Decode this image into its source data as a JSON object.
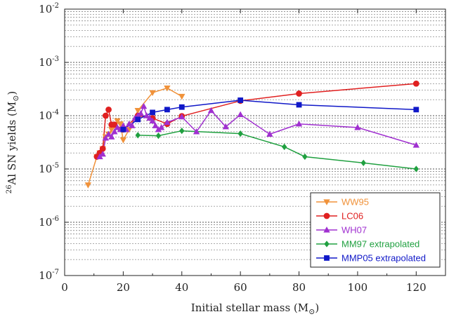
{
  "chart_data": {
    "type": "line",
    "xlabel": "Initial stellar mass (M",
    "xlabel_sub": "⊙",
    "xlabel_end": ")",
    "ylabel": "Al SN yields (M",
    "ylabel_sup": "26",
    "ylabel_sub": "⊙",
    "ylabel_end": ")",
    "xlim": [
      0,
      130
    ],
    "ylim_log10": [
      -7,
      -2
    ],
    "y_scale": "log",
    "grid": true,
    "legend_placement": "bottom-right",
    "x_ticks": [
      "0",
      "20",
      "40",
      "60",
      "80",
      "100",
      "120"
    ],
    "y_tick_base": "10",
    "y_tick_exponents": [
      "-7",
      "-6",
      "-5",
      "-4",
      "-3",
      "-2"
    ],
    "series": [
      {
        "name": "WW95",
        "color": "#f0923a",
        "marker": "triangle-down",
        "x": [
          8,
          11,
          12,
          13,
          14,
          15,
          16,
          17,
          18,
          19,
          20,
          22,
          25,
          30,
          35,
          40
        ],
        "y": [
          5e-06,
          1.7e-05,
          2e-05,
          2.4e-05,
          4e-05,
          4.5e-05,
          5.5e-05,
          6.5e-05,
          8e-05,
          7e-05,
          3.5e-05,
          5.5e-05,
          0.000125,
          0.00027,
          0.00033,
          0.00023
        ]
      },
      {
        "name": "LC06",
        "color": "#e02020",
        "marker": "circle",
        "x": [
          11,
          12,
          13,
          14,
          15,
          16,
          17,
          20,
          25,
          30,
          35,
          40,
          60,
          80,
          120
        ],
        "y": [
          1.7e-05,
          2e-05,
          2.4e-05,
          0.0001,
          0.00013,
          6.8e-05,
          6.8e-05,
          5.5e-05,
          0.0001,
          9e-05,
          7e-05,
          9.8e-05,
          0.00019,
          0.00026,
          0.0004
        ]
      },
      {
        "name": "WH07",
        "color": "#a030d0",
        "marker": "triangle-up",
        "x": [
          12,
          13,
          14,
          15,
          16,
          17,
          18,
          19,
          20,
          21,
          22,
          23,
          24,
          25,
          26,
          27,
          28,
          29,
          30,
          31,
          32,
          33,
          35,
          40,
          45,
          50,
          55,
          60,
          70,
          80,
          100,
          120
        ],
        "y": [
          1.7e-05,
          1.9e-05,
          3.8e-05,
          4.5e-05,
          4e-05,
          5e-05,
          6e-05,
          5.5e-05,
          6.5e-05,
          5.5e-05,
          7e-05,
          6.5e-05,
          9e-05,
          0.0001,
          0.00011,
          0.00015,
          0.0001,
          9e-05,
          8e-05,
          6.5e-05,
          5.5e-05,
          6e-05,
          7.5e-05,
          9.5e-05,
          5e-05,
          0.000125,
          6.2e-05,
          0.000105,
          4.5e-05,
          7e-05,
          6e-05,
          2.8e-05
        ]
      },
      {
        "name": "MM97 extrapolated",
        "color": "#20a040",
        "marker": "diamond",
        "x": [
          25,
          32,
          40,
          60,
          75,
          82,
          102,
          120
        ],
        "y": [
          4.3e-05,
          4.2e-05,
          5.2e-05,
          4.6e-05,
          2.6e-05,
          1.7e-05,
          1.3e-05,
          1e-05
        ]
      },
      {
        "name": "MMP05 extrapolated",
        "color": "#1018c8",
        "marker": "square",
        "x": [
          20,
          25,
          30,
          35,
          40,
          60,
          80,
          120
        ],
        "y": [
          5.5e-05,
          8.5e-05,
          0.000115,
          0.00013,
          0.000145,
          0.000195,
          0.00016,
          0.00013
        ]
      }
    ]
  }
}
